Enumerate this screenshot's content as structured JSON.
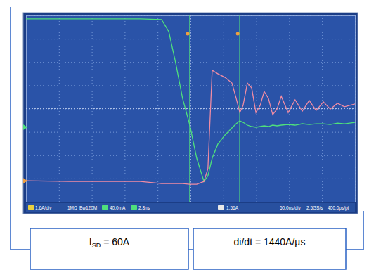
{
  "chart_data": {
    "type": "line",
    "x": [
      0,
      1.35,
      2.41,
      3.48,
      4.12,
      4.34,
      4.55,
      4.76,
      4.98,
      5.19,
      5.41,
      5.53,
      5.66,
      5.83,
      6.05,
      6.26,
      6.39,
      6.5,
      6.6,
      6.73,
      6.86,
      6.99,
      7.12,
      7.24,
      7.37,
      7.5,
      7.63,
      7.76,
      7.97,
      8.18,
      8.4,
      8.61,
      8.82,
      9.04,
      9.25,
      9.47,
      9.68,
      10
    ],
    "series": [
      {
        "color": "#4fe07c",
        "values": [
          3.85,
          3.85,
          3.85,
          3.85,
          3.82,
          3.31,
          1.96,
          0.44,
          -0.71,
          -2.13,
          -3.13,
          -2.89,
          -2.13,
          -1.53,
          -1.13,
          -0.83,
          -0.65,
          -0.53,
          -0.59,
          -0.71,
          -0.77,
          -0.8,
          -0.77,
          -0.74,
          -0.77,
          -0.71,
          -0.74,
          -0.71,
          -0.68,
          -0.71,
          -0.65,
          -0.68,
          -0.65,
          -0.65,
          -0.68,
          -0.62,
          -0.65,
          -0.59
        ]
      },
      {
        "color": "#f08ca4",
        "values": [
          -3.1,
          -3.13,
          -3.13,
          -3.13,
          -3.22,
          -3.22,
          -3.22,
          -3.22,
          -3.25,
          -3.25,
          -3.13,
          -2.58,
          1.65,
          1.5,
          1.34,
          1.1,
          0.44,
          -0.17,
          0.14,
          1.1,
          0.89,
          -0.17,
          0.14,
          0.74,
          0.44,
          -0.26,
          -0.02,
          0.53,
          -0.17,
          0.38,
          -0.11,
          0.35,
          -0.08,
          0.29,
          -0.02,
          0.23,
          0.08,
          0.2
        ]
      }
    ],
    "cursors": [
      4.98,
      6.5
    ],
    "xlim": [
      0,
      10
    ],
    "ylim": [
      -4,
      4
    ],
    "xticks": [
      0,
      1,
      2,
      3,
      4,
      5,
      6,
      7,
      8,
      9,
      10
    ],
    "yticks": [
      -4,
      -3,
      -2,
      -1,
      0,
      1,
      2,
      3,
      4
    ],
    "grid": true,
    "tick_labels": false
  },
  "status_bar": [
    "1.6A/div",
    "1MΩ",
    "Bw",
    "120M",
    "40.0mA",
    "2.8ns",
    "1.56A",
    "50.0ns/div",
    "2.5GS/s",
    "400.0ps/pt"
  ],
  "captions": [
    {
      "main": "I",
      "sub": "SD",
      "after": " = 60A"
    },
    {
      "main": "di/dt = 1440A/µs"
    }
  ]
}
